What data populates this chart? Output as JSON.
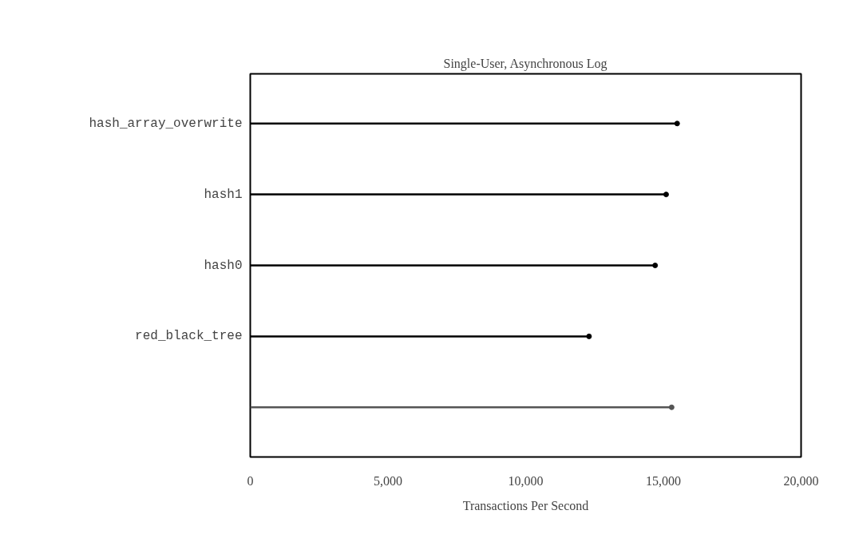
{
  "chart_data": {
    "type": "lollipop",
    "orientation": "horizontal",
    "title": "Single-User, Asynchronous Log",
    "xlabel": "Transactions Per Second",
    "categories": [
      "hash_array_overwrite",
      "hash1",
      "hash0",
      "red_black_tree",
      null
    ],
    "values": [
      15500,
      15100,
      14700,
      12300,
      15300
    ],
    "colors": [
      "#000000",
      "#000000",
      "#000000",
      "#000000",
      "#555555"
    ],
    "xlim": [
      0,
      20000
    ],
    "xticks": [
      {
        "value": 0,
        "label": "0"
      },
      {
        "value": 5000,
        "label": "5,000"
      },
      {
        "value": 10000,
        "label": "10,000"
      },
      {
        "value": 15000,
        "label": "15,000"
      },
      {
        "value": 20000,
        "label": "20,000"
      }
    ],
    "grid": false,
    "marker": "circle"
  }
}
